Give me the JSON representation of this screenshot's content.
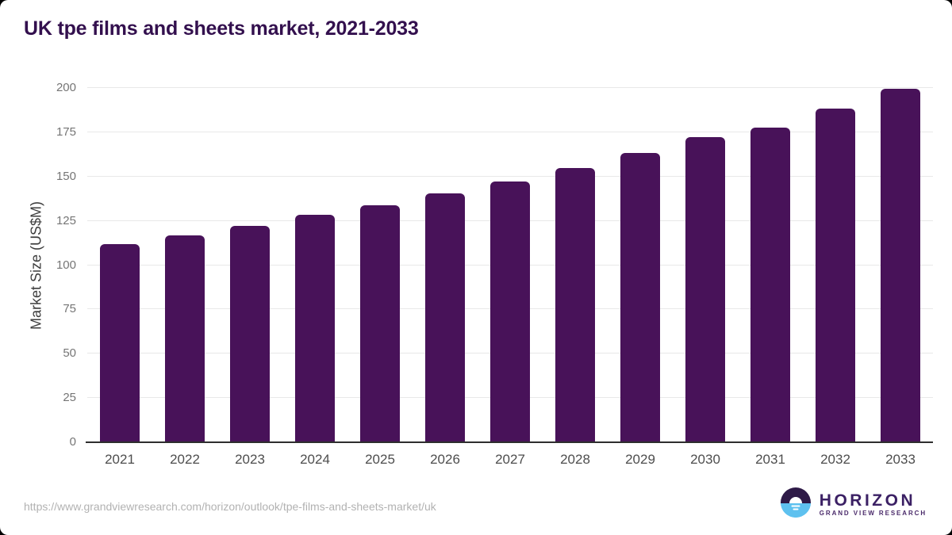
{
  "header": {
    "title": "UK tpe films and sheets market, 2021-2033"
  },
  "chart_data": {
    "type": "bar",
    "title": "UK tpe films and sheets market, 2021-2033",
    "categories": [
      "2021",
      "2022",
      "2023",
      "2024",
      "2025",
      "2026",
      "2027",
      "2028",
      "2029",
      "2030",
      "2031",
      "2032",
      "2033"
    ],
    "values": [
      112.0,
      116.8,
      122.3,
      128.2,
      133.9,
      140.3,
      147.2,
      154.9,
      163.2,
      172.4,
      177.7,
      188.3,
      199.6
    ],
    "xlabel": "",
    "ylabel": "Market Size (US$M)",
    "ylim": [
      0,
      200
    ],
    "yticks": [
      0,
      25,
      50,
      75,
      100,
      125,
      150,
      175,
      200
    ],
    "grid": true,
    "legend": "none",
    "bar_color": "#481259"
  },
  "footer": {
    "source_url": "https://www.grandviewresearch.com/horizon/outlook/tpe-films-and-sheets-market/uk",
    "logo": {
      "name": "HORIZON",
      "subtitle": "GRAND VIEW RESEARCH"
    }
  },
  "colors": {
    "title_text": "#33104e",
    "bar_fill": "#481259",
    "gridline": "#e8e8e8",
    "axis_line": "#2e2e2e",
    "tick_text": "#757575",
    "xtick_text": "#4d4d4d",
    "url_text": "#b2b2b2",
    "logo_purple": "#3b2064",
    "logo_blue": "#5ec1ef"
  }
}
